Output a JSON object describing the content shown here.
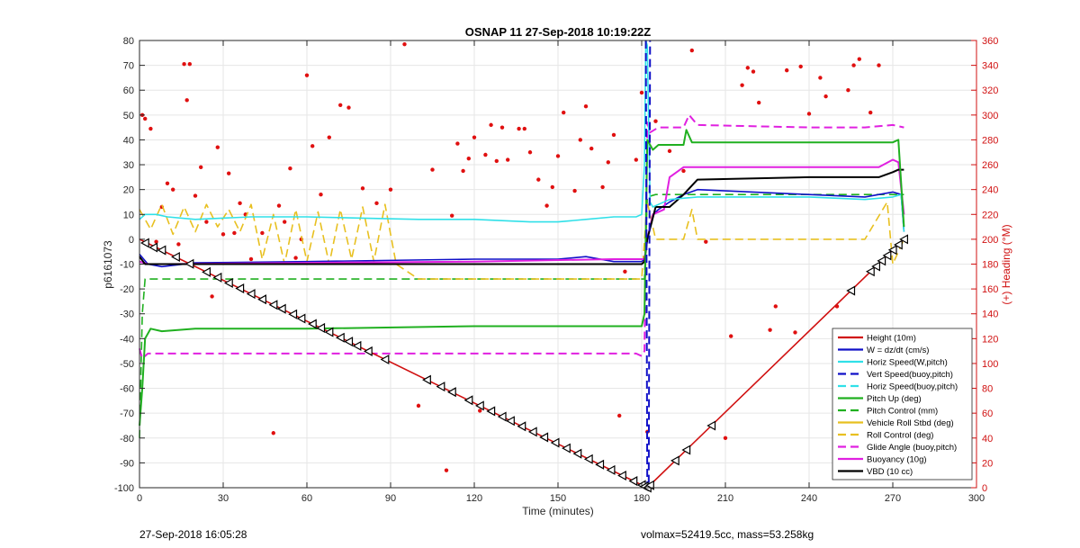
{
  "footer": {
    "left_text": "27-Sep-2018 16:05:28",
    "right_text": "volmax=52419.5cc, mass=53.258kg"
  },
  "chart_data": {
    "type": "line",
    "title": "OSNAP 11 27-Sep-2018 10:19:22Z",
    "xlabel": "Time (minutes)",
    "ylabel": "p6161073",
    "y2label": "(+) Heading (°M)",
    "xlim": [
      0,
      300
    ],
    "ylim": [
      -100,
      80
    ],
    "y2lim": [
      0,
      360
    ],
    "xticks": [
      0,
      30,
      60,
      90,
      120,
      150,
      180,
      210,
      240,
      270,
      300
    ],
    "yticks": [
      -100,
      -90,
      -80,
      -70,
      -60,
      -50,
      -40,
      -30,
      -20,
      -10,
      0,
      10,
      20,
      30,
      40,
      50,
      60,
      70,
      80
    ],
    "y2ticks": [
      0,
      20,
      40,
      60,
      80,
      100,
      120,
      140,
      160,
      180,
      200,
      220,
      240,
      260,
      280,
      300,
      320,
      340,
      360
    ],
    "grid": true,
    "legend_position": "bottom-right",
    "series": [
      {
        "name": "Height (10m)",
        "color": "#d01010",
        "dash": "solid",
        "width": 1.6,
        "x": [
          0,
          182,
          274
        ],
        "y": [
          0,
          -100,
          0
        ]
      },
      {
        "name": "W = dz/dt (cm/s)",
        "color": "#1010c8",
        "dash": "solid",
        "width": 1.6,
        "x": [
          0,
          3,
          8,
          20,
          60,
          120,
          150,
          160,
          170,
          180,
          181,
          182,
          184,
          186,
          190,
          195,
          200,
          240,
          260,
          270,
          273,
          274
        ],
        "y": [
          -6,
          -10,
          -11,
          -9.5,
          -9,
          -8,
          -8,
          -7,
          -9,
          -9,
          -8,
          0,
          10,
          12,
          15,
          18,
          20,
          18,
          17,
          19,
          18,
          3
        ]
      },
      {
        "name": "Horiz Speed(W,pitch)",
        "color": "#30e0e8",
        "dash": "solid",
        "width": 1.6,
        "x": [
          0,
          2,
          6,
          10,
          20,
          40,
          60,
          80,
          100,
          120,
          140,
          150,
          160,
          170,
          178,
          180,
          181,
          181.5,
          182,
          183,
          184,
          186,
          190,
          200,
          240,
          260,
          270,
          273,
          274
        ],
        "y": [
          8,
          10,
          10,
          9,
          8,
          9,
          9,
          8.5,
          8,
          8,
          7,
          7,
          8,
          9,
          9,
          10,
          30,
          80,
          78,
          15,
          13,
          14,
          16,
          17,
          17,
          16,
          17,
          18,
          3
        ]
      },
      {
        "name": "Vert Speed(buoy,pitch)",
        "color": "#1010c8",
        "dash": "dash",
        "width": 2,
        "x": [
          181.5,
          182,
          182.5,
          183
        ],
        "y": [
          80,
          -100,
          -100,
          80
        ]
      },
      {
        "name": "Horiz Speed(buoy,pitch)",
        "color": "#30e0e8",
        "dash": "dash",
        "width": 1.6,
        "x": [],
        "y": []
      },
      {
        "name": "Pitch Up (deg)",
        "color": "#20b020",
        "dash": "solid",
        "width": 2,
        "x": [
          0,
          1,
          2,
          4,
          8,
          20,
          60,
          120,
          150,
          178,
          180,
          181,
          182,
          184,
          186,
          195,
          196,
          198,
          240,
          260,
          270,
          272,
          274
        ],
        "y": [
          -75,
          -60,
          -40,
          -36,
          -37,
          -36,
          -36,
          -35,
          -35,
          -35,
          -35,
          -30,
          40,
          36,
          38,
          38,
          44,
          39,
          39,
          39,
          39,
          40,
          5
        ]
      },
      {
        "name": "Pitch Control (mm)",
        "color": "#20b020",
        "dash": "dash",
        "width": 1.6,
        "x": [
          0,
          1,
          2,
          180,
          181,
          182,
          185,
          274
        ],
        "y": [
          -80,
          -30,
          -16,
          -16,
          -16,
          17,
          18,
          18
        ]
      },
      {
        "name": "Vehicle Roll Stbd (deg)",
        "color": "#e8c020",
        "dash": "solid",
        "width": 1.6,
        "x": [
          0,
          3,
          6,
          9,
          12,
          15,
          18,
          21,
          24,
          27,
          30,
          33,
          36,
          39,
          42,
          45,
          48,
          51,
          54,
          57,
          60,
          63,
          66,
          69,
          72,
          75,
          78,
          81,
          84,
          87,
          90,
          93,
          96,
          99,
          102,
          105,
          108,
          111,
          114,
          117,
          120,
          123,
          126,
          129,
          132,
          135,
          138,
          141,
          144,
          147,
          150,
          153,
          156,
          159,
          162,
          165,
          168,
          171,
          174,
          177,
          180,
          182,
          185,
          190,
          195,
          200,
          240,
          250,
          260,
          265,
          270,
          274
        ],
        "y": [
          -2,
          7,
          -5,
          8,
          -3,
          7,
          -4,
          8,
          -5,
          7,
          -3,
          8,
          -4,
          7,
          -6,
          6,
          -3,
          8,
          -4,
          7,
          -5,
          8,
          -3,
          7,
          -4,
          8,
          -5,
          7,
          -3,
          8,
          -10,
          -2,
          -10,
          -2,
          -10,
          -2,
          -10,
          -2,
          -10,
          -2,
          -10,
          -2,
          -10,
          -2,
          -10,
          -2,
          -10,
          -2,
          -10,
          -2,
          -10,
          -2,
          -10,
          -2,
          -10,
          -2,
          -10,
          -2,
          -10,
          -2,
          -2,
          12,
          0,
          -2,
          -3,
          -3,
          -3,
          -3,
          -3,
          -4,
          -3,
          -2
        ]
      },
      {
        "name": "Roll Control (deg)",
        "color": "#e8c020",
        "dash": "dash",
        "width": 1.6,
        "x": [
          0,
          4,
          8,
          12,
          16,
          20,
          24,
          28,
          32,
          36,
          40,
          44,
          48,
          52,
          56,
          60,
          64,
          68,
          72,
          76,
          80,
          84,
          88,
          92,
          100,
          110,
          120,
          130,
          140,
          150,
          160,
          170,
          180,
          182,
          185,
          195,
          198,
          200,
          240,
          255,
          260,
          268,
          270,
          274
        ],
        "y": [
          12,
          4,
          14,
          2,
          13,
          3,
          14,
          5,
          12,
          3,
          14,
          -8,
          10,
          -10,
          12,
          -9,
          11,
          -10,
          12,
          -8,
          13,
          -9,
          14,
          -10,
          -16,
          -16,
          -16,
          -16,
          -16,
          -16,
          -16,
          -16,
          -16,
          15,
          0,
          0,
          12,
          0,
          0,
          0,
          0,
          15,
          -10,
          0
        ]
      },
      {
        "name": "Glide Angle (buoy,pitch)",
        "color": "#e020e0",
        "dash": "dash",
        "width": 2,
        "x": [
          0,
          1,
          3,
          10,
          30,
          60,
          90,
          120,
          150,
          178,
          180,
          181,
          182,
          183,
          186,
          195,
          197,
          200,
          240,
          260,
          270,
          274
        ],
        "y": [
          -44,
          -48,
          -46,
          -46,
          -46,
          -46,
          -46,
          -46,
          -46,
          -46,
          -47,
          -45,
          47,
          43,
          45,
          45,
          50,
          46,
          45,
          45,
          46,
          45
        ]
      },
      {
        "name": "Buoyancy (10g)",
        "color": "#e020e0",
        "dash": "solid",
        "width": 2,
        "x": [
          0,
          3,
          10,
          60,
          120,
          170,
          180,
          181,
          182,
          184,
          188,
          190,
          195,
          240,
          260,
          265,
          270,
          272,
          274
        ],
        "y": [
          -9,
          -10,
          -10,
          -9.5,
          -9,
          -8,
          -8,
          -8,
          0,
          10,
          12,
          25,
          29,
          29,
          29,
          29,
          32,
          31,
          10
        ]
      },
      {
        "name": "VBD (10 cc)",
        "color": "#000000",
        "dash": "solid",
        "width": 2,
        "x": [
          0,
          2,
          5,
          20,
          60,
          120,
          170,
          180,
          181,
          182,
          185,
          190,
          195,
          200,
          240,
          260,
          265,
          270,
          272,
          274
        ],
        "y": [
          -7,
          -10,
          -10,
          -10,
          -10,
          -10,
          -10,
          -10,
          -9,
          0,
          13,
          13,
          18,
          24,
          25,
          25,
          25,
          27,
          28,
          28
        ]
      }
    ],
    "heading_points": [
      [
        1,
        300
      ],
      [
        2,
        297
      ],
      [
        4,
        289
      ],
      [
        6,
        198
      ],
      [
        8,
        226
      ],
      [
        10,
        245
      ],
      [
        12,
        240
      ],
      [
        14,
        196
      ],
      [
        16,
        341
      ],
      [
        17,
        312
      ],
      [
        18,
        341
      ],
      [
        20,
        235
      ],
      [
        22,
        258
      ],
      [
        24,
        214
      ],
      [
        26,
        154
      ],
      [
        28,
        274
      ],
      [
        30,
        204
      ],
      [
        32,
        253
      ],
      [
        34,
        205
      ],
      [
        36,
        229
      ],
      [
        38,
        220
      ],
      [
        40,
        184
      ],
      [
        44,
        205
      ],
      [
        48,
        44
      ],
      [
        50,
        227
      ],
      [
        52,
        214
      ],
      [
        54,
        257
      ],
      [
        56,
        185
      ],
      [
        58,
        200
      ],
      [
        60,
        332
      ],
      [
        62,
        275
      ],
      [
        65,
        236
      ],
      [
        68,
        282
      ],
      [
        72,
        308
      ],
      [
        75,
        306
      ],
      [
        80,
        241
      ],
      [
        85,
        229
      ],
      [
        90,
        240
      ],
      [
        95,
        357
      ],
      [
        100,
        66
      ],
      [
        105,
        256
      ],
      [
        110,
        14
      ],
      [
        112,
        219
      ],
      [
        114,
        277
      ],
      [
        116,
        255
      ],
      [
        118,
        265
      ],
      [
        120,
        282
      ],
      [
        122,
        62
      ],
      [
        124,
        268
      ],
      [
        126,
        292
      ],
      [
        128,
        263
      ],
      [
        130,
        290
      ],
      [
        132,
        264
      ],
      [
        136,
        289
      ],
      [
        138,
        289
      ],
      [
        140,
        270
      ],
      [
        143,
        248
      ],
      [
        146,
        227
      ],
      [
        148,
        242
      ],
      [
        150,
        267
      ],
      [
        152,
        302
      ],
      [
        156,
        239
      ],
      [
        158,
        280
      ],
      [
        160,
        307
      ],
      [
        162,
        273
      ],
      [
        166,
        242
      ],
      [
        168,
        262
      ],
      [
        170,
        284
      ],
      [
        172,
        58
      ],
      [
        174,
        174
      ],
      [
        178,
        264
      ],
      [
        180,
        318
      ],
      [
        182,
        45
      ],
      [
        185,
        295
      ],
      [
        190,
        271
      ],
      [
        195,
        255
      ],
      [
        198,
        352
      ],
      [
        203,
        198
      ],
      [
        210,
        40
      ],
      [
        212,
        122
      ],
      [
        216,
        324
      ],
      [
        218,
        338
      ],
      [
        220,
        335
      ],
      [
        222,
        310
      ],
      [
        226,
        127
      ],
      [
        228,
        146
      ],
      [
        232,
        336
      ],
      [
        235,
        125
      ],
      [
        237,
        339
      ],
      [
        240,
        301
      ],
      [
        244,
        330
      ],
      [
        246,
        315
      ],
      [
        250,
        146
      ],
      [
        254,
        320
      ],
      [
        256,
        340
      ],
      [
        258,
        345
      ],
      [
        262,
        302
      ],
      [
        265,
        340
      ]
    ],
    "height_markers": [
      [
        2,
        -1.5
      ],
      [
        5,
        -3.3
      ],
      [
        8,
        -4.4
      ],
      [
        13,
        -7.1
      ],
      [
        18,
        -9.9
      ],
      [
        24,
        -13.2
      ],
      [
        28,
        -15.4
      ],
      [
        32,
        -17.6
      ],
      [
        36,
        -19.8
      ],
      [
        40,
        -22
      ],
      [
        44,
        -24.2
      ],
      [
        48,
        -26.4
      ],
      [
        51,
        -28
      ],
      [
        55,
        -30.2
      ],
      [
        58,
        -31.9
      ],
      [
        62,
        -34.1
      ],
      [
        65,
        -35.7
      ],
      [
        68,
        -37.4
      ],
      [
        72,
        -39.6
      ],
      [
        75,
        -41.2
      ],
      [
        78,
        -42.9
      ],
      [
        82,
        -45.1
      ],
      [
        88,
        -48.4
      ],
      [
        103,
        -56.6
      ],
      [
        108,
        -59.3
      ],
      [
        112,
        -61.5
      ],
      [
        118,
        -64.8
      ],
      [
        122,
        -67
      ],
      [
        126,
        -69.2
      ],
      [
        130,
        -71.4
      ],
      [
        133,
        -73.1
      ],
      [
        137,
        -75.3
      ],
      [
        141,
        -77.5
      ],
      [
        145,
        -79.7
      ],
      [
        149,
        -81.9
      ],
      [
        153,
        -84.1
      ],
      [
        157,
        -86.3
      ],
      [
        161,
        -88.5
      ],
      [
        165,
        -90.7
      ],
      [
        169,
        -92.9
      ],
      [
        173,
        -95.1
      ],
      [
        177,
        -97.3
      ],
      [
        180,
        -98.9
      ],
      [
        181,
        -99.5
      ],
      [
        182,
        -100
      ],
      [
        183,
        -99
      ],
      [
        192,
        -89.1
      ],
      [
        196,
        -84.8
      ],
      [
        205,
        -75
      ],
      [
        255,
        -20.7
      ],
      [
        262,
        -13
      ],
      [
        264,
        -10.9
      ],
      [
        266,
        -8.7
      ],
      [
        268,
        -6.5
      ],
      [
        270,
        -4.3
      ],
      [
        272,
        -2.2
      ],
      [
        274,
        0
      ]
    ]
  }
}
